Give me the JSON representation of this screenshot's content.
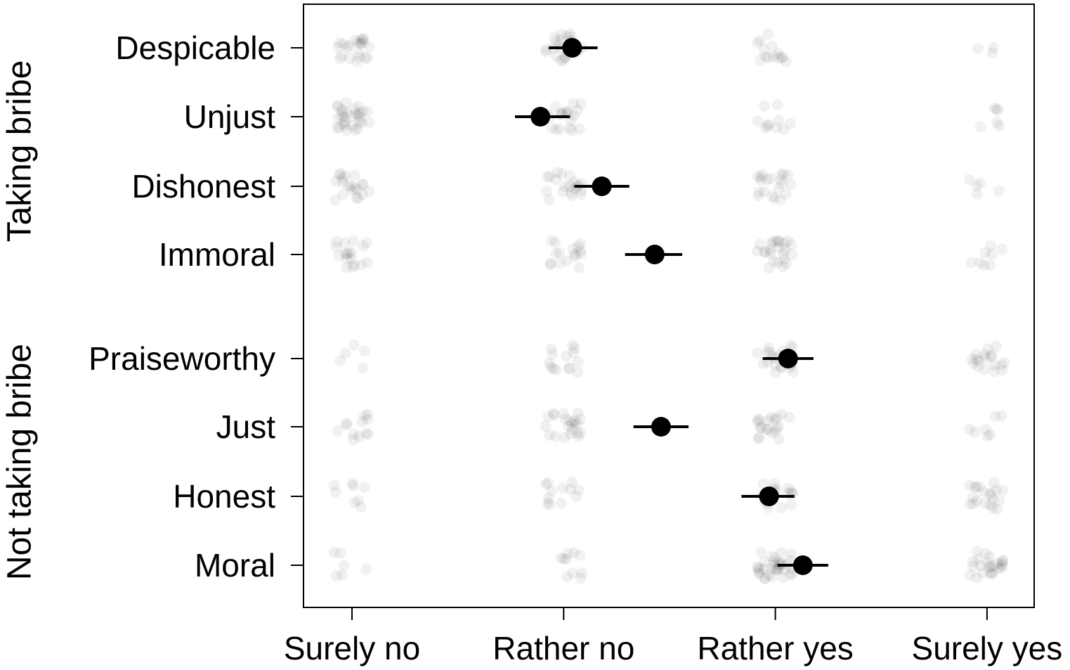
{
  "chart_data": {
    "type": "scatter",
    "groups": [
      {
        "name": "Taking bribe",
        "items": [
          "Despicable",
          "Unjust",
          "Dishonest",
          "Immoral"
        ]
      },
      {
        "name": "Not taking bribe",
        "items": [
          "Praiseworthy",
          "Just",
          "Honest",
          "Moral"
        ]
      }
    ],
    "x_categories": [
      "Surely no",
      "Rather no",
      "Rather yes",
      "Surely yes"
    ],
    "xlim": [
      0.75,
      4.3
    ],
    "grid": false,
    "series": [
      {
        "label": "Despicable",
        "mean": 2.04,
        "ci": [
          1.93,
          2.16
        ],
        "jitter_counts": [
          22,
          26,
          14,
          3
        ]
      },
      {
        "label": "Unjust",
        "mean": 1.89,
        "ci": [
          1.77,
          2.03
        ],
        "jitter_counts": [
          30,
          20,
          10,
          6
        ]
      },
      {
        "label": "Dishonest",
        "mean": 2.18,
        "ci": [
          2.05,
          2.31
        ],
        "jitter_counts": [
          20,
          20,
          20,
          5
        ]
      },
      {
        "label": "Immoral",
        "mean": 2.43,
        "ci": [
          2.29,
          2.56
        ],
        "jitter_counts": [
          18,
          16,
          24,
          8
        ]
      },
      {
        "label": "Praiseworthy",
        "mean": 3.06,
        "ci": [
          2.94,
          3.18
        ],
        "jitter_counts": [
          5,
          14,
          22,
          18
        ]
      },
      {
        "label": "Just",
        "mean": 2.46,
        "ci": [
          2.33,
          2.59
        ],
        "jitter_counts": [
          12,
          22,
          20,
          7
        ]
      },
      {
        "label": "Honest",
        "mean": 2.97,
        "ci": [
          2.84,
          3.09
        ],
        "jitter_counts": [
          8,
          12,
          20,
          20
        ]
      },
      {
        "label": "Moral",
        "mean": 3.13,
        "ci": [
          3.01,
          3.25
        ],
        "jitter_counts": [
          6,
          10,
          34,
          24
        ]
      }
    ]
  }
}
